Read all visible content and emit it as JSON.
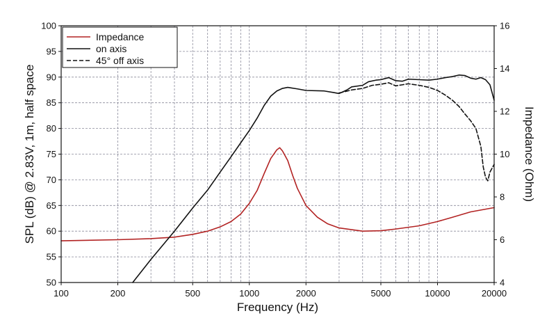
{
  "chart_data": {
    "type": "line",
    "x_scale": "log",
    "xlabel": "Frequency (Hz)",
    "ylabel": "SPL (dB) @ 2.83V, 1m, half space",
    "y2label": "Impedance (Ohm)",
    "xlim": [
      100,
      20000
    ],
    "ylim": [
      50,
      100
    ],
    "y2lim": [
      4,
      16
    ],
    "grid": true,
    "legend_position": "top-left",
    "x_ticks": [
      100,
      200,
      500,
      1000,
      2000,
      5000,
      10000,
      20000
    ],
    "x_tick_labels": [
      "100",
      "200",
      "500",
      "1000",
      "2000",
      "5000",
      "10000",
      "20000"
    ],
    "x_minor_grid": [
      300,
      400,
      600,
      700,
      800,
      900,
      3000,
      4000,
      6000,
      7000,
      8000,
      9000
    ],
    "y_ticks": [
      50,
      55,
      60,
      65,
      70,
      75,
      80,
      85,
      90,
      95,
      100
    ],
    "y_tick_labels": [
      "50",
      "55",
      "60",
      "65",
      "70",
      "75",
      "80",
      "85",
      "90",
      "95",
      "100"
    ],
    "y2_ticks": [
      4,
      6,
      8,
      10,
      12,
      14,
      16
    ],
    "y2_tick_labels": [
      "4",
      "6",
      "8",
      "10",
      "12",
      "14",
      "16"
    ],
    "series": [
      {
        "name": "Impedance",
        "axis": "right",
        "color": "#b22222",
        "dash": "solid",
        "points": [
          [
            100,
            5.95
          ],
          [
            200,
            6.0
          ],
          [
            300,
            6.05
          ],
          [
            400,
            6.12
          ],
          [
            500,
            6.25
          ],
          [
            600,
            6.4
          ],
          [
            700,
            6.6
          ],
          [
            800,
            6.85
          ],
          [
            900,
            7.2
          ],
          [
            1000,
            7.7
          ],
          [
            1100,
            8.3
          ],
          [
            1200,
            9.1
          ],
          [
            1300,
            9.8
          ],
          [
            1400,
            10.2
          ],
          [
            1450,
            10.3
          ],
          [
            1500,
            10.15
          ],
          [
            1600,
            9.7
          ],
          [
            1700,
            9.0
          ],
          [
            1800,
            8.4
          ],
          [
            2000,
            7.6
          ],
          [
            2300,
            7.05
          ],
          [
            2600,
            6.75
          ],
          [
            3000,
            6.55
          ],
          [
            4000,
            6.4
          ],
          [
            5000,
            6.42
          ],
          [
            6000,
            6.5
          ],
          [
            8000,
            6.65
          ],
          [
            10000,
            6.85
          ],
          [
            12000,
            7.05
          ],
          [
            15000,
            7.3
          ],
          [
            20000,
            7.5
          ]
        ]
      },
      {
        "name": "on axis",
        "axis": "left",
        "color": "#111111",
        "dash": "solid",
        "points": [
          [
            240,
            50
          ],
          [
            300,
            54.5
          ],
          [
            400,
            60
          ],
          [
            500,
            64.5
          ],
          [
            600,
            68
          ],
          [
            700,
            71.5
          ],
          [
            800,
            74.5
          ],
          [
            900,
            77.2
          ],
          [
            1000,
            79.6
          ],
          [
            1100,
            82
          ],
          [
            1200,
            84.5
          ],
          [
            1300,
            86.3
          ],
          [
            1400,
            87.3
          ],
          [
            1500,
            87.8
          ],
          [
            1600,
            88.0
          ],
          [
            1800,
            87.7
          ],
          [
            2000,
            87.4
          ],
          [
            2500,
            87.3
          ],
          [
            2800,
            87
          ],
          [
            3000,
            86.8
          ],
          [
            3300,
            87.5
          ],
          [
            3500,
            88.1
          ],
          [
            4000,
            88.4
          ],
          [
            4300,
            89.1
          ],
          [
            4700,
            89.4
          ],
          [
            5000,
            89.5
          ],
          [
            5500,
            89.9
          ],
          [
            6000,
            89.3
          ],
          [
            6500,
            89.2
          ],
          [
            7000,
            89.6
          ],
          [
            8000,
            89.5
          ],
          [
            9000,
            89.4
          ],
          [
            10000,
            89.6
          ],
          [
            11000,
            89.9
          ],
          [
            12000,
            90.1
          ],
          [
            13000,
            90.4
          ],
          [
            14000,
            90.3
          ],
          [
            15000,
            89.8
          ],
          [
            16000,
            89.6
          ],
          [
            17000,
            89.9
          ],
          [
            18000,
            89.5
          ],
          [
            19000,
            88.5
          ],
          [
            20000,
            85.5
          ]
        ]
      },
      {
        "name": "45° off axis",
        "axis": "left",
        "color": "#111111",
        "dash": "dashed",
        "points": [
          [
            3000,
            86.9
          ],
          [
            3500,
            87.5
          ],
          [
            4000,
            87.8
          ],
          [
            4500,
            88.4
          ],
          [
            5000,
            88.6
          ],
          [
            5500,
            88.9
          ],
          [
            6000,
            88.3
          ],
          [
            6500,
            88.5
          ],
          [
            7000,
            88.7
          ],
          [
            8000,
            88.4
          ],
          [
            9000,
            88.0
          ],
          [
            10000,
            87.4
          ],
          [
            11000,
            86.5
          ],
          [
            12000,
            85.5
          ],
          [
            13000,
            84.3
          ],
          [
            14000,
            82.8
          ],
          [
            15000,
            81.5
          ],
          [
            16000,
            80.0
          ],
          [
            17000,
            76.5
          ],
          [
            17500,
            72.5
          ],
          [
            18000,
            70.5
          ],
          [
            18500,
            69.8
          ],
          [
            19000,
            71.5
          ],
          [
            20000,
            73.0
          ]
        ]
      }
    ]
  }
}
